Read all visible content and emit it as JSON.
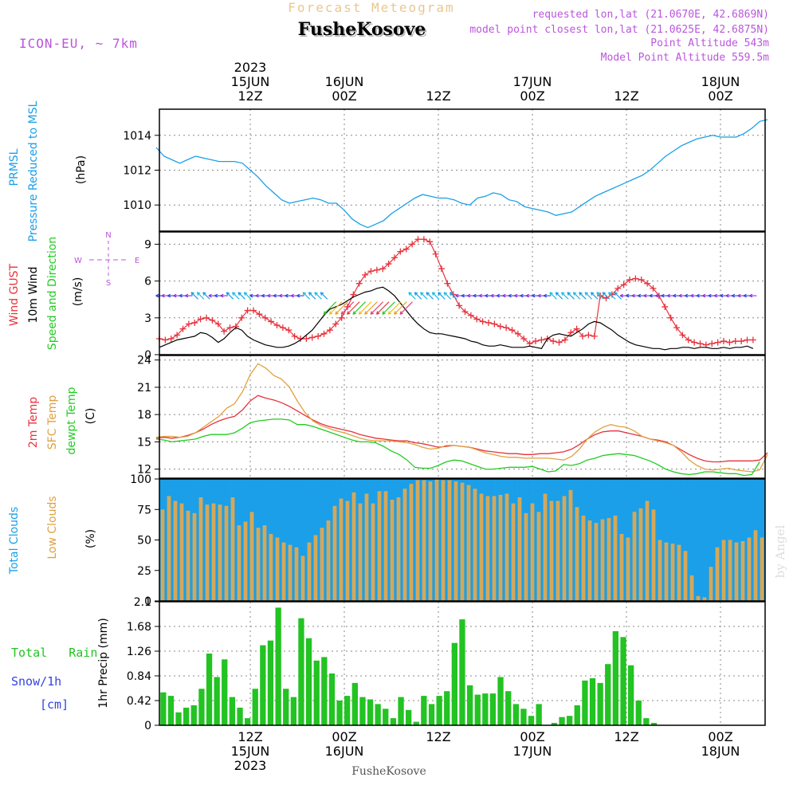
{
  "header": {
    "super_title": "Forecast Meteogram",
    "station": "FusheKosove",
    "model": "ICON-EU, ~ 7km",
    "req_point": "requested lon,lat (21.0670E, 42.6869N)",
    "model_point": "model point closest lon,lat (21.0625E, 42.6875N)",
    "point_alt": "Point Altitude 543m",
    "model_alt": "Model Point Altitude 559.5m"
  },
  "footer": {
    "station": "FusheKosove",
    "credit": "by Angel"
  },
  "time_axis": {
    "top": [
      {
        "h": 12,
        "lines": [
          "2023",
          "15JUN",
          "12Z"
        ]
      },
      {
        "h": 24,
        "lines": [
          "16JUN",
          "00Z"
        ]
      },
      {
        "h": 36,
        "lines": [
          "12Z"
        ]
      },
      {
        "h": 48,
        "lines": [
          "17JUN",
          "00Z"
        ]
      },
      {
        "h": 60,
        "lines": [
          "12Z"
        ]
      },
      {
        "h": 72,
        "lines": [
          "18JUN",
          "00Z"
        ]
      }
    ],
    "bottom": [
      {
        "h": 12,
        "lines": [
          "12Z",
          "15JUN",
          "2023"
        ]
      },
      {
        "h": 24,
        "lines": [
          "00Z",
          "16JUN"
        ]
      },
      {
        "h": 36,
        "lines": [
          "12Z"
        ]
      },
      {
        "h": 48,
        "lines": [
          "00Z",
          "17JUN"
        ]
      },
      {
        "h": 60,
        "lines": [
          "12Z"
        ]
      },
      {
        "h": 72,
        "lines": [
          "00Z",
          "18JUN"
        ]
      }
    ]
  },
  "panel_labels": {
    "pressure": {
      "l1": "PRMSL",
      "l2": "Pressure Reduced to MSL",
      "unit": "(hPa)"
    },
    "wind": {
      "l1": "Wind GUST",
      "l2": "10m Wind",
      "l3": "Speed and Direction",
      "unit": "(m/s)"
    },
    "compass": {
      "n": "N",
      "s": "S",
      "w": "W",
      "e": "E"
    },
    "temp": {
      "l1": "2m Temp",
      "l2": "SFC Temp",
      "l3": "dewpt Temp",
      "unit": "(C)"
    },
    "clouds": {
      "l1": "Total Clouds",
      "l2": "Low Clouds",
      "unit": "(%)"
    },
    "precip": {
      "l1": "Total   Rain",
      "l2": "Snow/1h",
      "l3": "[cm]",
      "unit": "1hr Precip (mm)"
    }
  },
  "colors": {
    "pressure": "#1a9fe8",
    "gust": "#e8323c",
    "wind": "#000000",
    "t2m": "#e8323c",
    "tsfc": "#e0a040",
    "tdew": "#22cc22",
    "total_clouds": "#1a9fe8",
    "low_clouds": "#d4a85a",
    "rain": "#22c322",
    "header": "#bb55dd",
    "title_faint": "#e8c890"
  },
  "chart_data": [
    {
      "type": "line",
      "name": "pressure",
      "x_start_hour": 0,
      "x_step_hours": 1,
      "ylim": [
        1008.5,
        1015.5
      ],
      "yticks": [
        1010,
        1012,
        1014
      ],
      "series": [
        {
          "name": "PRMSL",
          "values": [
            1013.3,
            1012.8,
            1012.6,
            1012.4,
            1012.6,
            1012.8,
            1012.7,
            1012.6,
            1012.5,
            1012.5,
            1012.5,
            1012.4,
            1012.0,
            1011.6,
            1011.1,
            1010.7,
            1010.3,
            1010.1,
            1010.2,
            1010.3,
            1010.4,
            1010.3,
            1010.1,
            1010.1,
            1009.7,
            1009.2,
            1008.9,
            1008.7,
            1008.9,
            1009.1,
            1009.5,
            1009.8,
            1010.1,
            1010.4,
            1010.6,
            1010.5,
            1010.4,
            1010.4,
            1010.3,
            1010.1,
            1010.0,
            1010.4,
            1010.5,
            1010.7,
            1010.6,
            1010.3,
            1010.2,
            1009.9,
            1009.8,
            1009.7,
            1009.6,
            1009.4,
            1009.5,
            1009.6,
            1009.9,
            1010.2,
            1010.5,
            1010.7,
            1010.9,
            1011.1,
            1011.3,
            1011.5,
            1011.7,
            1012.0,
            1012.4,
            1012.8,
            1013.1,
            1013.4,
            1013.6,
            1013.8,
            1013.9,
            1014.0,
            1013.9,
            1013.9,
            1013.9,
            1014.1,
            1014.4,
            1014.8,
            1014.9
          ]
        }
      ]
    },
    {
      "type": "line",
      "name": "wind",
      "x_start_hour": 0,
      "x_step_hours": 1,
      "ylim": [
        0,
        10
      ],
      "yticks": [
        0,
        3,
        6,
        9
      ],
      "series": [
        {
          "name": "Wind GUST",
          "values": [
            1.3,
            1.2,
            1.3,
            1.6,
            2.1,
            2.5,
            2.6,
            2.9,
            3.0,
            2.8,
            2.5,
            1.9,
            2.2,
            2.3,
            3.0,
            3.6,
            3.6,
            3.3,
            3.0,
            2.7,
            2.4,
            2.2,
            2.0,
            1.5,
            1.3,
            1.3,
            1.4,
            1.5,
            1.7,
            2.0,
            2.5,
            3.0,
            3.9,
            4.9,
            5.8,
            6.5,
            6.8,
            6.9,
            7.0,
            7.4,
            7.9,
            8.4,
            8.6,
            9.0,
            9.4,
            9.4,
            9.2,
            8.2,
            7.0,
            5.8,
            4.9,
            4.0,
            3.5,
            3.2,
            2.9,
            2.7,
            2.6,
            2.5,
            2.3,
            2.2,
            2.0,
            1.7,
            1.3,
            0.9,
            1.1,
            1.2,
            1.3,
            1.1,
            1.0,
            1.2,
            1.8,
            2.1,
            1.5,
            1.6,
            1.5,
            4.8,
            4.6,
            4.9,
            5.4,
            5.7,
            6.1,
            6.2,
            6.1,
            5.8,
            5.4,
            4.8,
            3.9,
            3.0,
            2.2,
            1.6,
            1.2,
            1.0,
            0.9,
            0.8,
            0.9,
            1.0,
            1.1,
            1.0,
            1.1,
            1.1,
            1.2,
            1.2
          ]
        },
        {
          "name": "10m Wind",
          "values": [
            0.6,
            0.8,
            1.0,
            1.2,
            1.3,
            1.4,
            1.5,
            1.8,
            1.7,
            1.4,
            1.0,
            1.3,
            1.8,
            2.2,
            2.0,
            1.5,
            1.2,
            1.0,
            0.8,
            0.7,
            0.6,
            0.6,
            0.7,
            0.9,
            1.2,
            1.6,
            2.0,
            2.6,
            3.2,
            3.7,
            3.9,
            4.1,
            4.4,
            4.7,
            4.9,
            5.1,
            5.2,
            5.4,
            5.5,
            5.2,
            4.8,
            4.2,
            3.6,
            3.0,
            2.5,
            2.1,
            1.8,
            1.7,
            1.7,
            1.6,
            1.5,
            1.4,
            1.3,
            1.1,
            1.0,
            0.8,
            0.7,
            0.7,
            0.8,
            0.7,
            0.6,
            0.6,
            0.6,
            0.7,
            0.6,
            0.5,
            1.3,
            1.6,
            1.7,
            1.6,
            1.5,
            1.8,
            2.1,
            2.5,
            2.7,
            2.6,
            2.3,
            2.0,
            1.6,
            1.3,
            1.0,
            0.8,
            0.7,
            0.6,
            0.5,
            0.5,
            0.4,
            0.5,
            0.5,
            0.6,
            0.6,
            0.5,
            0.6,
            0.6,
            0.5,
            0.5,
            0.6,
            0.5,
            0.6,
            0.6,
            0.7,
            0.5
          ]
        }
      ],
      "direction_arrows_shown": true
    },
    {
      "type": "line",
      "name": "temperature",
      "x_start_hour": 0,
      "x_step_hours": 1,
      "ylim": [
        11,
        24.5
      ],
      "yticks": [
        12,
        15,
        18,
        21,
        24
      ],
      "series": [
        {
          "name": "2m Temp",
          "values": [
            15.4,
            15.5,
            15.4,
            15.5,
            15.7,
            16.0,
            16.4,
            16.9,
            17.3,
            17.6,
            17.8,
            18.5,
            19.5,
            20.1,
            19.8,
            19.6,
            19.3,
            18.9,
            18.4,
            17.9,
            17.4,
            17.0,
            16.7,
            16.5,
            16.3,
            16.1,
            15.8,
            15.6,
            15.4,
            15.3,
            15.2,
            15.1,
            15.1,
            14.9,
            14.8,
            14.6,
            14.4,
            14.5,
            14.6,
            14.5,
            14.4,
            14.2,
            14.0,
            13.9,
            13.8,
            13.7,
            13.7,
            13.6,
            13.6,
            13.7,
            13.7,
            13.8,
            13.9,
            14.2,
            14.7,
            15.3,
            15.8,
            16.1,
            16.2,
            16.2,
            16.0,
            15.8,
            15.6,
            15.3,
            15.2,
            15.0,
            14.6,
            14.1,
            13.6,
            13.2,
            12.9,
            12.8,
            12.8,
            12.9,
            12.9,
            12.9,
            12.9,
            13.0,
            13.8
          ]
        },
        {
          "name": "SFC Temp",
          "values": [
            15.5,
            15.6,
            15.6,
            15.5,
            15.6,
            16.0,
            16.6,
            17.2,
            17.8,
            18.7,
            19.2,
            20.5,
            22.4,
            23.6,
            23.1,
            22.3,
            21.9,
            21.0,
            19.5,
            18.2,
            17.3,
            16.8,
            16.5,
            16.2,
            16.0,
            15.7,
            15.4,
            15.2,
            15.1,
            15.1,
            15.1,
            15.0,
            14.9,
            14.7,
            14.4,
            14.2,
            14.3,
            14.6,
            14.6,
            14.5,
            14.4,
            14.1,
            13.8,
            13.6,
            13.4,
            13.3,
            13.3,
            13.2,
            13.2,
            13.2,
            13.2,
            13.1,
            13.0,
            13.4,
            14.2,
            15.3,
            16.1,
            16.6,
            16.9,
            16.7,
            16.6,
            16.2,
            15.6,
            15.3,
            15.1,
            14.9,
            14.6,
            13.9,
            13.0,
            12.4,
            12.0,
            11.9,
            12.0,
            12.1,
            11.9,
            11.8,
            11.7,
            11.9,
            13.6
          ]
        },
        {
          "name": "dewpt Temp",
          "values": [
            15.3,
            15.2,
            15.0,
            15.1,
            15.2,
            15.3,
            15.6,
            15.8,
            15.8,
            15.8,
            16.0,
            16.5,
            17.1,
            17.3,
            17.4,
            17.5,
            17.5,
            17.4,
            16.9,
            16.9,
            16.7,
            16.4,
            16.1,
            15.8,
            15.5,
            15.2,
            15.0,
            15.0,
            14.9,
            14.5,
            14.0,
            13.6,
            13.0,
            12.2,
            12.1,
            12.1,
            12.4,
            12.8,
            13.0,
            12.9,
            12.6,
            12.3,
            12.0,
            12.0,
            12.1,
            12.2,
            12.2,
            12.2,
            12.3,
            12.0,
            11.7,
            11.8,
            12.5,
            12.4,
            12.6,
            13.0,
            13.2,
            13.5,
            13.6,
            13.7,
            13.6,
            13.5,
            13.2,
            12.9,
            12.5,
            12.0,
            11.7,
            11.5,
            11.4,
            11.5,
            11.7,
            11.7,
            11.6,
            11.5,
            11.5,
            11.3,
            11.4,
            12.8
          ]
        }
      ]
    },
    {
      "type": "bar",
      "name": "clouds",
      "x_start_hour": 0,
      "x_step_hours": 1,
      "ylim": [
        0,
        100
      ],
      "yticks": [
        0,
        25,
        50,
        75,
        100
      ],
      "series": [
        {
          "name": "Total Clouds",
          "values": [
            100,
            100,
            100,
            100,
            100,
            100,
            100,
            100,
            100,
            100,
            100,
            100,
            100,
            100,
            100,
            100,
            100,
            100,
            100,
            100,
            100,
            100,
            100,
            100,
            100,
            100,
            100,
            100,
            100,
            100,
            100,
            100,
            100,
            100,
            100,
            100,
            100,
            100,
            100,
            100,
            100,
            100,
            100,
            100,
            100,
            100,
            100,
            100,
            100,
            100,
            100,
            100,
            100,
            100,
            100,
            100,
            100,
            100,
            100,
            100,
            100,
            100,
            100,
            100,
            100,
            100,
            100,
            100,
            100,
            100,
            100,
            100,
            100,
            100,
            100,
            100,
            100,
            100,
            100,
            100,
            100,
            100,
            100,
            100,
            100,
            100,
            100,
            100,
            100,
            100,
            100,
            100,
            100,
            100,
            100,
            100,
            100,
            100,
            100,
            100,
            100,
            100,
            100,
            100,
            100,
            100,
            100,
            100,
            100,
            100,
            100,
            100,
            100,
            100,
            100,
            100,
            100,
            100,
            100,
            100,
            100,
            100,
            100,
            100,
            100,
            100,
            100,
            100
          ]
        },
        {
          "name": "Low Clouds",
          "values": [
            75,
            86,
            82,
            80,
            74,
            72,
            85,
            79,
            80,
            79,
            78,
            85,
            62,
            65,
            73,
            60,
            62,
            55,
            52,
            48,
            46,
            44,
            37,
            48,
            54,
            60,
            66,
            78,
            84,
            82,
            89,
            80,
            88,
            80,
            90,
            90,
            83,
            85,
            92,
            96,
            99,
            99,
            98,
            100,
            99,
            99,
            98,
            97,
            95,
            92,
            88,
            86,
            86,
            87,
            88,
            80,
            85,
            72,
            80,
            73,
            88,
            82,
            82,
            86,
            91,
            77,
            70,
            66,
            64,
            67,
            68,
            70,
            55,
            52,
            73,
            76,
            82,
            75,
            50,
            48,
            47,
            46,
            41,
            21,
            4,
            3,
            28,
            44,
            50,
            50,
            48,
            49,
            52,
            58,
            52
          ]
        }
      ]
    },
    {
      "type": "bar",
      "name": "precipitation",
      "x_start_hour": 0,
      "x_step_hours": 1,
      "ylim": [
        0,
        2.1
      ],
      "yticks": [
        0,
        0.42,
        0.84,
        1.26,
        1.68,
        2.1
      ],
      "series": [
        {
          "name": "Total Rain",
          "values": [
            0.56,
            0.5,
            0.22,
            0.3,
            0.34,
            0.62,
            1.22,
            0.82,
            1.12,
            0.48,
            0.3,
            0.12,
            0.62,
            1.36,
            1.44,
            2.0,
            0.62,
            0.48,
            1.82,
            1.48,
            1.1,
            1.16,
            0.88,
            0.42,
            0.5,
            0.72,
            0.48,
            0.44,
            0.36,
            0.28,
            0.12,
            0.48,
            0.26,
            0.06,
            0.5,
            0.36,
            0.5,
            0.58,
            1.4,
            1.8,
            0.68,
            0.52,
            0.54,
            0.54,
            0.82,
            0.58,
            0.36,
            0.28,
            0.16,
            0.36,
            0.0,
            0.04,
            0.14,
            0.16,
            0.34,
            0.76,
            0.8,
            0.72,
            1.04,
            1.6,
            1.5,
            1.02,
            0.42,
            0.12,
            0.04,
            0.0,
            0.0,
            0.0,
            0.0,
            0.0,
            0.0,
            0.0,
            0.0,
            0.0,
            0.0,
            0.0,
            0.0,
            0.0,
            0.0
          ]
        }
      ]
    }
  ]
}
